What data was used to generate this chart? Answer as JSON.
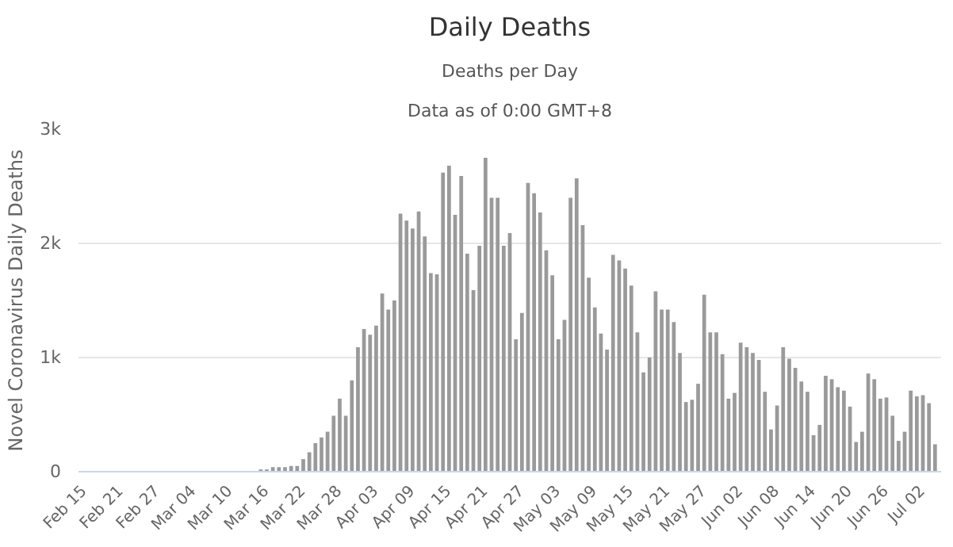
{
  "chart_data": {
    "type": "bar",
    "title": "Daily Deaths",
    "subtitle": "Deaths per Day",
    "annotations": [
      "Data as of 0:00 GMT+8"
    ],
    "ylabel": "Novel Coronavirus Daily Deaths",
    "categories": [
      "Feb 15",
      null,
      null,
      null,
      null,
      null,
      "Feb 21",
      null,
      null,
      null,
      null,
      null,
      "Feb 27",
      null,
      null,
      null,
      null,
      null,
      "Mar 04",
      null,
      null,
      null,
      null,
      null,
      "Mar 10",
      null,
      null,
      null,
      null,
      null,
      "Mar 16",
      null,
      null,
      null,
      null,
      null,
      "Mar 22",
      null,
      null,
      null,
      null,
      null,
      "Mar 28",
      null,
      null,
      null,
      null,
      null,
      "Apr 03",
      null,
      null,
      null,
      null,
      null,
      "Apr 09",
      null,
      null,
      null,
      null,
      null,
      "Apr 15",
      null,
      null,
      null,
      null,
      null,
      "Apr 21",
      null,
      null,
      null,
      null,
      null,
      "Apr 27",
      null,
      null,
      null,
      null,
      null,
      "May 03",
      null,
      null,
      null,
      null,
      null,
      "May 09",
      null,
      null,
      null,
      null,
      null,
      "May 15",
      null,
      null,
      null,
      null,
      null,
      "May 21",
      null,
      null,
      null,
      null,
      null,
      "May 27",
      null,
      null,
      null,
      null,
      null,
      "Jun 02",
      null,
      null,
      null,
      null,
      null,
      "Jun 08",
      null,
      null,
      null,
      null,
      null,
      "Jun 14",
      null,
      null,
      null,
      null,
      null,
      "Jun 20",
      null,
      null,
      null,
      null,
      null,
      "Jun 26",
      null,
      null,
      null,
      null,
      null,
      "Jul 02",
      null,
      null
    ],
    "values": [
      0,
      0,
      0,
      0,
      0,
      0,
      0,
      0,
      0,
      0,
      0,
      0,
      0,
      0,
      0,
      0,
      0,
      0,
      0,
      0,
      0,
      0,
      0,
      0,
      0,
      0,
      0,
      0,
      0,
      20,
      20,
      40,
      40,
      40,
      50,
      50,
      110,
      170,
      250,
      300,
      350,
      490,
      640,
      490,
      800,
      1090,
      1250,
      1200,
      1280,
      1560,
      1420,
      1500,
      2260,
      2200,
      2130,
      2280,
      2060,
      1740,
      1730,
      2620,
      2680,
      2250,
      2590,
      1910,
      1590,
      1980,
      2750,
      2400,
      2400,
      1980,
      2090,
      1160,
      1390,
      2530,
      2440,
      2270,
      1940,
      1720,
      1160,
      1330,
      2400,
      2570,
      2160,
      1700,
      1440,
      1210,
      1070,
      1900,
      1850,
      1780,
      1630,
      1220,
      870,
      1000,
      1580,
      1420,
      1420,
      1310,
      1040,
      610,
      630,
      770,
      1550,
      1220,
      1220,
      1030,
      640,
      690,
      1130,
      1090,
      1040,
      980,
      700,
      370,
      580,
      1090,
      990,
      910,
      790,
      700,
      320,
      410,
      840,
      810,
      740,
      710,
      570,
      260,
      350,
      860,
      810,
      640,
      650,
      490,
      270,
      350,
      710,
      660,
      670,
      600,
      240
    ],
    "color": "#9a9a9a",
    "ylim": [
      0,
      3000
    ],
    "yticks": [
      0,
      {
        "value": 1000,
        "label": "1k"
      },
      {
        "value": 2000,
        "label": "2k"
      },
      {
        "value": 3000,
        "label": "3k"
      }
    ],
    "grid": "y"
  }
}
